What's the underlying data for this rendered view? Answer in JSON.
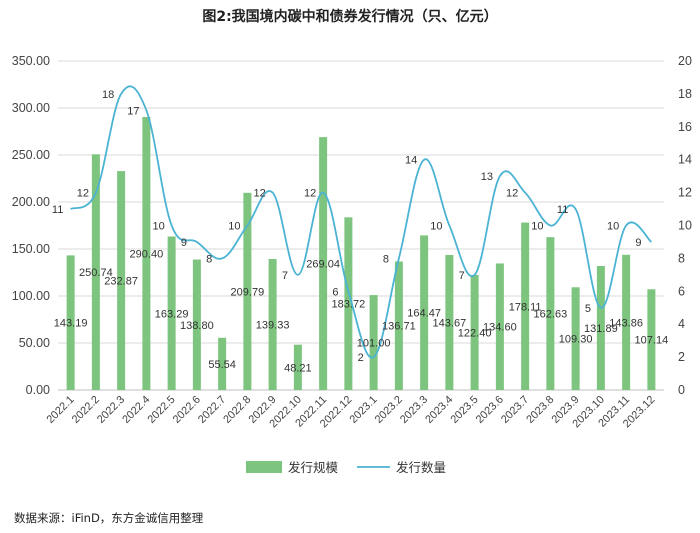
{
  "chart_data": {
    "type": "bar",
    "title": "图2:我国境内碳中和债券发行情况（只、亿元）",
    "categories": [
      "2022.1",
      "2022.2",
      "2022.3",
      "2022.4",
      "2022.5",
      "2022.6",
      "2022.7",
      "2022.8",
      "2022.9",
      "2022.10",
      "2022.11",
      "2022.12",
      "2023.1",
      "2023.2",
      "2023.3",
      "2023.4",
      "2023.5",
      "2023.6",
      "2023.7",
      "2023.8",
      "2023.9",
      "2023.10",
      "2023.11",
      "2023.12"
    ],
    "series": [
      {
        "name": "发行规模",
        "type": "bar",
        "axis": "left",
        "color": "#7dc47f",
        "values": [
          143.19,
          250.74,
          232.87,
          290.4,
          163.29,
          138.8,
          55.54,
          209.79,
          139.33,
          48.21,
          269.04,
          183.72,
          101.0,
          136.71,
          164.47,
          143.67,
          122.4,
          134.6,
          178.11,
          162.63,
          109.3,
          131.89,
          143.86,
          107.14
        ],
        "labels": [
          "143.19",
          "250.74",
          "232.87",
          "290.40",
          "163.29",
          "138.80",
          "55.54",
          "209.79",
          "139.33",
          "48.21",
          "269.04",
          "183.72",
          "101.00",
          "136.71",
          "164.47",
          "143.67",
          "122.40",
          "134.60",
          "178.11",
          "162.63",
          "109.30",
          "131.89",
          "143.86",
          "107.14"
        ]
      },
      {
        "name": "发行数量",
        "type": "line",
        "axis": "right",
        "color": "#4bb3d3",
        "values": [
          11,
          12,
          18,
          17,
          10,
          9,
          8,
          10,
          12,
          7,
          12,
          6,
          2,
          8,
          14,
          10,
          7,
          13,
          12,
          10,
          11,
          5,
          10,
          9
        ],
        "labels": [
          "11",
          "12",
          "18",
          "17",
          "10",
          "9",
          "8",
          "10",
          "12",
          "7",
          "12",
          "6",
          "2",
          "8",
          "14",
          "10",
          "7",
          "13",
          "12",
          "10",
          "11",
          "5",
          "10",
          "9"
        ]
      }
    ],
    "y_left": {
      "lim": [
        0,
        350
      ],
      "ticks": [
        "0.00",
        "50.00",
        "100.00",
        "150.00",
        "200.00",
        "250.00",
        "300.00",
        "350.00"
      ]
    },
    "y_right": {
      "lim": [
        0,
        20
      ],
      "ticks": [
        "0",
        "2",
        "4",
        "6",
        "8",
        "10",
        "12",
        "14",
        "16",
        "18",
        "20"
      ]
    },
    "grid": true,
    "legend": "bottom-center"
  },
  "source_note": "数据来源：iFinD，东方金诚信用整理"
}
